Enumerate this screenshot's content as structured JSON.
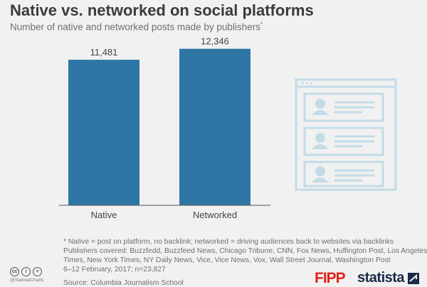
{
  "header": {
    "title": "Native vs. networked on social platforms",
    "subtitle": "Number of native and networked posts made by publishers",
    "subtitle_mark": "*"
  },
  "chart_data": {
    "type": "bar",
    "categories": [
      "Native",
      "Networked"
    ],
    "values": [
      11481,
      12346
    ],
    "value_labels": [
      "11,481",
      "12,346"
    ],
    "ylim": [
      0,
      13000
    ],
    "grid": false,
    "bar_color": "#2e77a5"
  },
  "notes": {
    "line1": "* Native = post on platform, no backlink; networked = driving audiences back to websites via backlinks",
    "line2": "Publishers covered: Buzzfedd, Buzzfeed News, Chicago Tribune, CNN, Fox News, Huffington Post, Los Angeles",
    "line3": "Times, New York Times, NY Daily News, Vice, Vice News, Vox, Wall Street Journal, Washington Post",
    "line4": "6–12 February, 2017; n=23,827",
    "source": "Source: Columbia Journalism School"
  },
  "credits": {
    "cc1": "cc",
    "cc2": "i",
    "cc3": "=",
    "handle": "@StatistaCharts",
    "icons": [
      "cc-icon",
      "attribution-icon",
      "no-derivatives-icon"
    ]
  },
  "logos": {
    "fipp": "FIPP",
    "statista": "statista"
  },
  "colors": {
    "background": "#f1f1f1",
    "bar": "#2e77a5",
    "illustration": "#c3dbe7",
    "fipp_red": "#e2231a",
    "statista_navy": "#1a2a47"
  }
}
